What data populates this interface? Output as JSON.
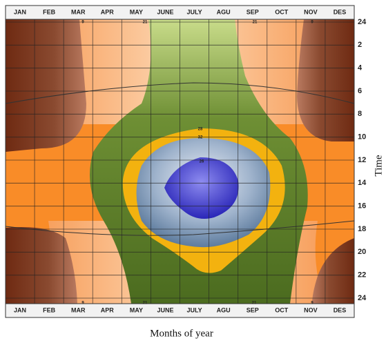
{
  "chart_data": {
    "type": "contour",
    "x_label": "Months of year",
    "y_label": "Time",
    "categories": [
      "JAN",
      "FEB",
      "MAR",
      "APR",
      "MAY",
      "JUNE",
      "JULY",
      "AGU",
      "SEP",
      "OCT",
      "NOV",
      "DES"
    ],
    "ylim": [
      0,
      24
    ],
    "yticks": [
      {
        "value": 0,
        "label": "24"
      },
      2,
      4,
      6,
      8,
      10,
      12,
      14,
      16,
      18,
      20,
      22,
      24
    ],
    "annotations": [
      "28",
      "32",
      "26",
      "9",
      "21",
      "21",
      "9",
      "9",
      "21",
      "21",
      "9"
    ],
    "grid": true
  }
}
